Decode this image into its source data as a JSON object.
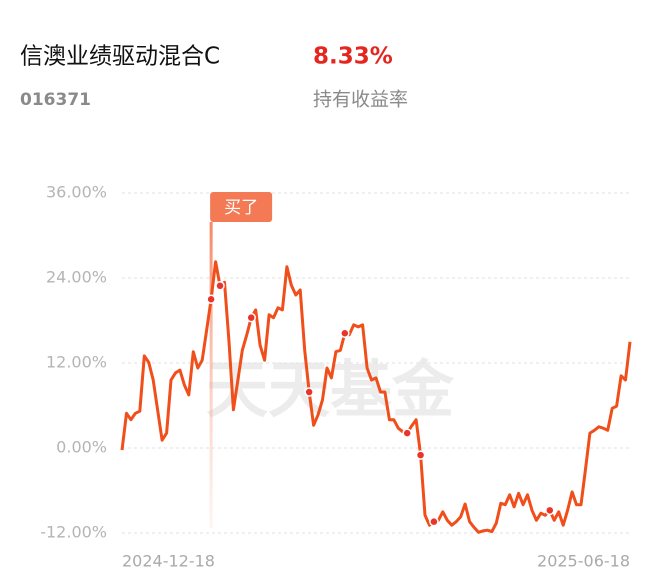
{
  "header": {
    "title": "信澳业绩驱动混合C",
    "code": "016371",
    "return_value": "8.33%",
    "return_label": "持有收益率"
  },
  "chart_data": {
    "type": "line",
    "watermark": "天天基金",
    "categories": [
      "2024-12-18",
      null,
      null,
      null,
      null,
      null,
      null,
      null,
      null,
      null,
      null,
      null,
      null,
      null,
      null,
      null,
      null,
      null,
      null,
      null,
      null,
      null,
      null,
      null,
      null,
      null,
      null,
      null,
      null,
      null,
      null,
      null,
      null,
      null,
      null,
      null,
      null,
      null,
      null,
      null,
      null,
      null,
      null,
      null,
      null,
      null,
      null,
      null,
      null,
      null,
      null,
      null,
      null,
      null,
      null,
      null,
      null,
      null,
      null,
      null,
      null,
      null,
      null,
      null,
      null,
      null,
      null,
      null,
      null,
      null,
      null,
      null,
      null,
      null,
      null,
      null,
      null,
      null,
      null,
      null,
      null,
      null,
      null,
      null,
      null,
      null,
      null,
      null,
      null,
      null,
      null,
      null,
      null,
      null,
      null,
      null,
      null,
      null,
      null,
      null,
      null,
      null,
      null,
      null,
      null,
      null,
      null,
      null,
      null,
      null,
      null,
      null,
      null,
      null,
      "2025-06-18"
    ],
    "series": [
      {
        "color": "#f04e1a",
        "values": [
          -0.3,
          4.9,
          4.0,
          4.9,
          5.2,
          13.0,
          12.1,
          9.6,
          5.4,
          1.1,
          2.1,
          9.6,
          10.6,
          11.0,
          8.9,
          7.5,
          13.6,
          11.3,
          12.4,
          16.7,
          21.0,
          26.3,
          22.9,
          23.4,
          15.2,
          5.4,
          9.6,
          13.8,
          16.0,
          18.4,
          19.5,
          14.5,
          12.4,
          18.8,
          18.4,
          19.8,
          19.5,
          25.6,
          23.0,
          21.6,
          22.3,
          13.8,
          7.9,
          3.2,
          4.7,
          6.8,
          11.3,
          9.9,
          13.6,
          13.8,
          16.2,
          16.0,
          17.4,
          17.1,
          17.4,
          11.3,
          9.6,
          9.9,
          7.9,
          7.9,
          4.0,
          4.0,
          2.8,
          2.3,
          2.1,
          3.1,
          4.0,
          -1.0,
          -9.5,
          -10.9,
          -10.4,
          -10.2,
          -9.0,
          -10.2,
          -10.9,
          -10.4,
          -9.7,
          -7.9,
          -10.4,
          -11.2,
          -11.9,
          -11.7,
          -11.6,
          -11.8,
          -10.6,
          -7.8,
          -8.0,
          -6.6,
          -8.3,
          -6.4,
          -8.0,
          -6.6,
          -8.8,
          -10.2,
          -9.2,
          -9.5,
          -8.8,
          -10.2,
          -9.0,
          -10.9,
          -8.8,
          -6.2,
          -8.0,
          -8.0,
          -3.1,
          2.1,
          2.5,
          3.0,
          2.8,
          2.5,
          5.6,
          5.9,
          10.2,
          9.6,
          15.0
        ]
      }
    ],
    "trade_markers": [
      20,
      22,
      29,
      42,
      50,
      64,
      67,
      70,
      96
    ],
    "buy_annotation": {
      "text": "买了",
      "index": 20
    },
    "ylim": [
      -12,
      36
    ],
    "yticks": [
      {
        "value": -12,
        "label": "-12.00%"
      },
      {
        "value": 0,
        "label": "0.00%"
      },
      {
        "value": 12,
        "label": "12.00%"
      },
      {
        "value": 24,
        "label": "24.00%"
      },
      {
        "value": 36,
        "label": "36.00%"
      }
    ],
    "grid": true
  }
}
